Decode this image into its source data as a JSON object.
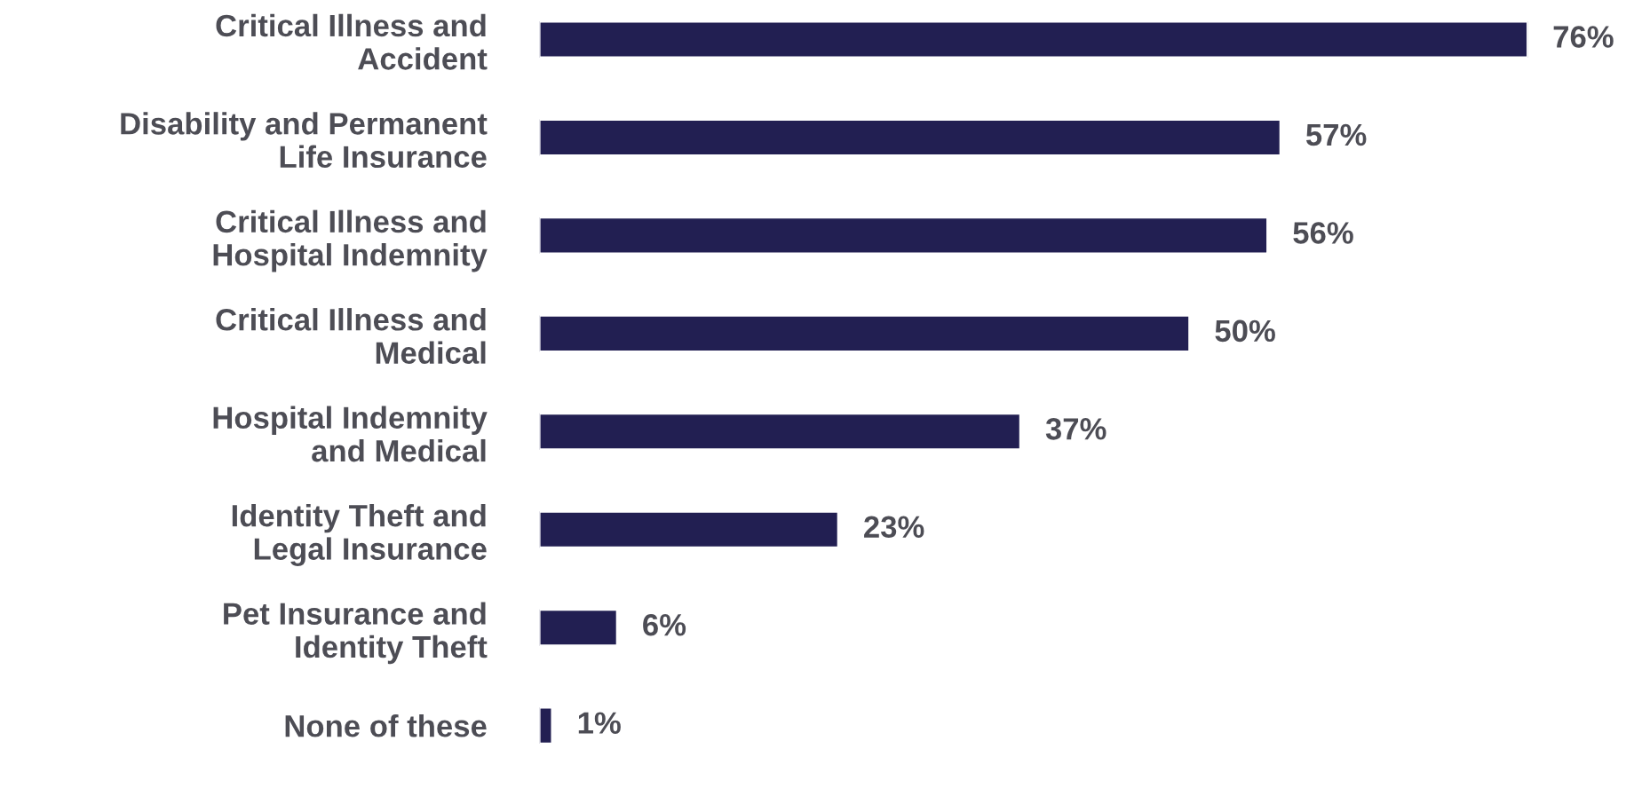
{
  "chart_data": {
    "type": "bar",
    "orientation": "horizontal",
    "categories": [
      "Critical Illness and\nAccident",
      "Disability and Permanent\nLife Insurance",
      "Critical Illness and\nHospital Indemnity",
      "Critical Illness and\nMedical",
      "Hospital Indemnity\nand Medical",
      "Identity Theft and\nLegal Insurance",
      "Pet Insurance and\nIdentity Theft",
      "None of these"
    ],
    "values": [
      76,
      57,
      56,
      50,
      37,
      23,
      6,
      1
    ],
    "value_labels": [
      "76%",
      "57%",
      "56%",
      "50%",
      "37%",
      "23%",
      "6%",
      "1%"
    ],
    "color": "#221f52",
    "grid": false,
    "legend": false
  }
}
